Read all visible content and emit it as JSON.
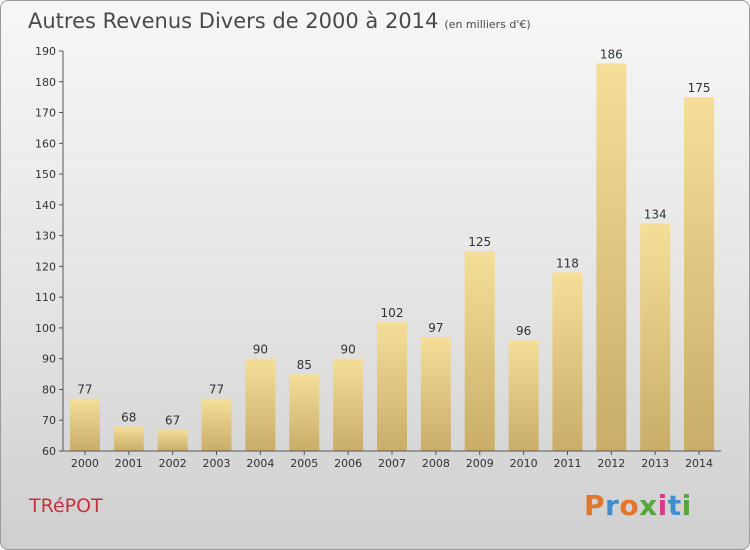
{
  "header": {
    "title": "Autres Revenus Divers de 2000 à 2014",
    "unit": "(en milliers d'€)"
  },
  "location": "TRéPOT",
  "brand": {
    "text": "Proxiti",
    "colors": [
      "#e2762c",
      "#3d8fd0",
      "#e2762c",
      "#52a83a",
      "#d73b8c",
      "#3d8fd0",
      "#52a83a"
    ]
  },
  "chart_data": {
    "type": "bar",
    "categories": [
      "2000",
      "2001",
      "2002",
      "2003",
      "2004",
      "2005",
      "2006",
      "2007",
      "2008",
      "2009",
      "2010",
      "2011",
      "2012",
      "2013",
      "2014"
    ],
    "values": [
      77,
      68,
      67,
      77,
      90,
      85,
      90,
      102,
      97,
      125,
      96,
      118,
      186,
      134,
      175
    ],
    "ylim": [
      60,
      190
    ],
    "yticks": [
      60,
      70,
      80,
      90,
      100,
      110,
      120,
      130,
      140,
      150,
      160,
      170,
      180,
      190
    ],
    "grid": false,
    "bar_color": "#e9d08a"
  }
}
